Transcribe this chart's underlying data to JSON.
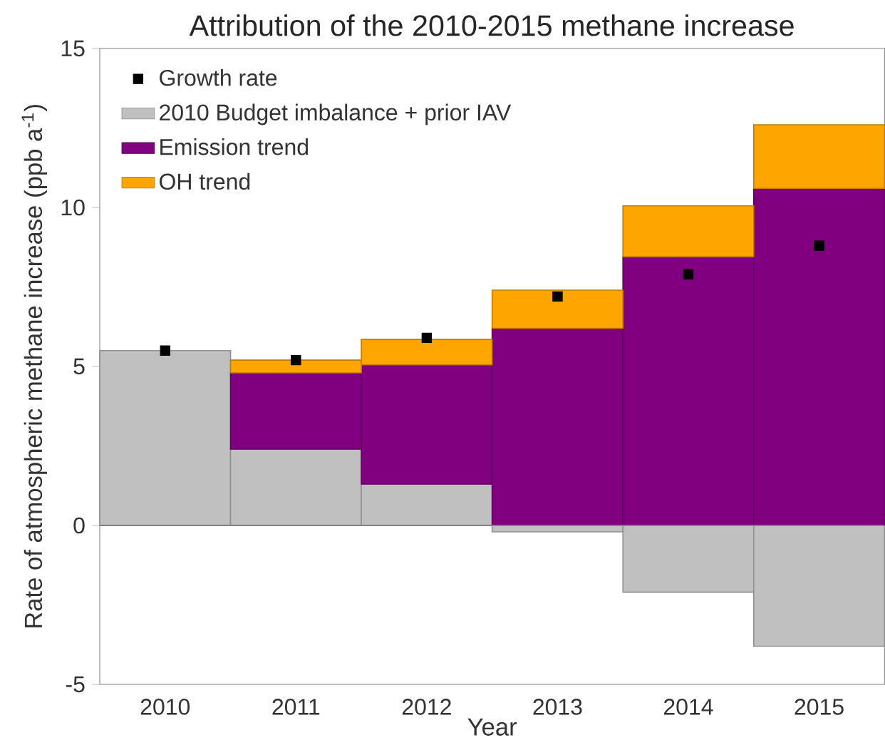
{
  "chart_data": {
    "type": "bar",
    "title": "Attribution of the 2010-2015 methane increase",
    "xlabel": "Year",
    "ylabel": "Rate of atmospheric methane increase (ppb a$^{-1}$)",
    "categories": [
      "2010",
      "2011",
      "2012",
      "2013",
      "2014",
      "2015"
    ],
    "stacked": true,
    "ylim": [
      -5,
      15
    ],
    "yticks": [
      -5,
      0,
      5,
      10,
      15
    ],
    "legend": "top left",
    "marker": "square",
    "ref_lines": [
      {
        "axis": "y",
        "value": 0,
        "color": "#808080"
      }
    ],
    "series": [
      {
        "name": "Growth rate",
        "type": "scatter",
        "color": "#000000",
        "values": [
          5.5,
          5.2,
          5.9,
          7.2,
          7.9,
          8.8
        ]
      },
      {
        "name": "2010 Budget imbalance + prior IAV",
        "color": "#c0c0c0",
        "values": [
          5.5,
          2.4,
          1.3,
          -0.2,
          -2.1,
          -3.8
        ]
      },
      {
        "name": "Emission trend",
        "color": "#800080",
        "values": [
          null,
          2.4,
          3.75,
          6.2,
          8.45,
          10.6
        ]
      },
      {
        "name": "OH trend",
        "color": "#ffa500",
        "values": [
          null,
          0.4,
          0.8,
          1.2,
          1.6,
          2.0
        ]
      }
    ]
  }
}
